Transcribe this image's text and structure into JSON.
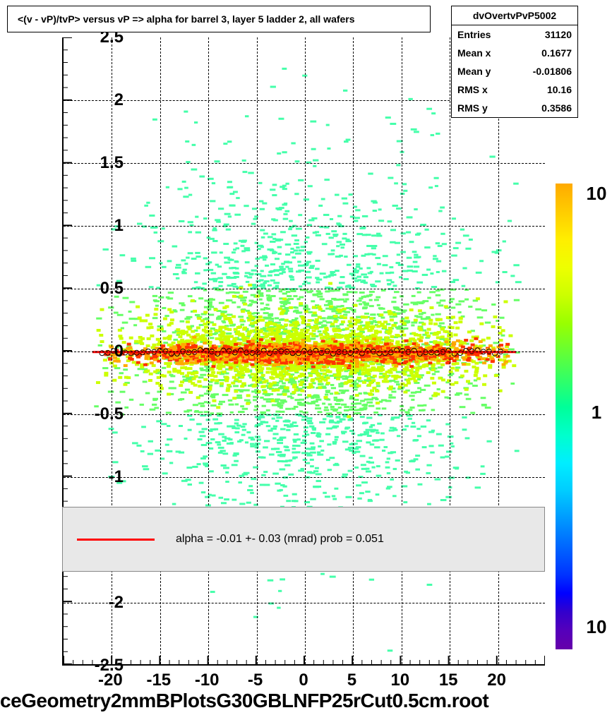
{
  "title": "<(v - vP)/tvP> versus   vP => alpha for barrel 3, layer 5 ladder 2, all wafers",
  "stats": {
    "name": "dvOvertvPvP5002",
    "entries_label": "Entries",
    "entries": "31120",
    "meanx_label": "Mean x",
    "meanx": "0.1677",
    "meany_label": "Mean y",
    "meany": "-0.01806",
    "rmsx_label": "RMS x",
    "rmsx": "10.16",
    "rmsy_label": "RMS y",
    "rmsy": "0.3586"
  },
  "legend": {
    "text": "alpha =   -0.01 +-  0.03 (mrad) prob = 0.051"
  },
  "bottom_text": "ceGeometry2mmBPlotsG30GBLNFP25rCut0.5cm.root",
  "axes": {
    "xlim": [
      -25,
      25
    ],
    "xticks": [
      -20,
      -15,
      -10,
      -5,
      0,
      5,
      10,
      15,
      20
    ],
    "ylim": [
      -2.5,
      2.5
    ],
    "yticks": [
      -2.5,
      -2,
      -1.5,
      -1,
      -0.5,
      0,
      0.5,
      1,
      1.5,
      2,
      2.5
    ],
    "grid_color": "#000000"
  },
  "colorbar": {
    "ticks": [
      "10",
      "1",
      "10"
    ],
    "tick_positions": [
      0.02,
      0.49,
      0.95
    ],
    "stops": [
      {
        "c": "#ffaa00",
        "p": 0
      },
      {
        "c": "#ffcc00",
        "p": 6
      },
      {
        "c": "#ffee00",
        "p": 12
      },
      {
        "c": "#eeff00",
        "p": 18
      },
      {
        "c": "#ccff00",
        "p": 24
      },
      {
        "c": "#99ff00",
        "p": 30
      },
      {
        "c": "#66ff33",
        "p": 36
      },
      {
        "c": "#33ff66",
        "p": 42
      },
      {
        "c": "#00ff99",
        "p": 48
      },
      {
        "c": "#00ffcc",
        "p": 54
      },
      {
        "c": "#00eeff",
        "p": 60
      },
      {
        "c": "#00ccff",
        "p": 66
      },
      {
        "c": "#0099ff",
        "p": 72
      },
      {
        "c": "#0066ff",
        "p": 78
      },
      {
        "c": "#0033ff",
        "p": 84
      },
      {
        "c": "#0000ff",
        "p": 88
      },
      {
        "c": "#3300cc",
        "p": 92
      },
      {
        "c": "#5500bb",
        "p": 96
      },
      {
        "c": "#6600aa",
        "p": 100
      }
    ]
  },
  "scatter": {
    "fit_line_color": "#ff0000",
    "fit_y": -0.01,
    "band_colors": {
      "core_high": "#ff3300",
      "core_mid": "#ffaa00",
      "mid": "#ccff00",
      "outer": "#66ff66",
      "sparse": "#44ffaa"
    }
  }
}
